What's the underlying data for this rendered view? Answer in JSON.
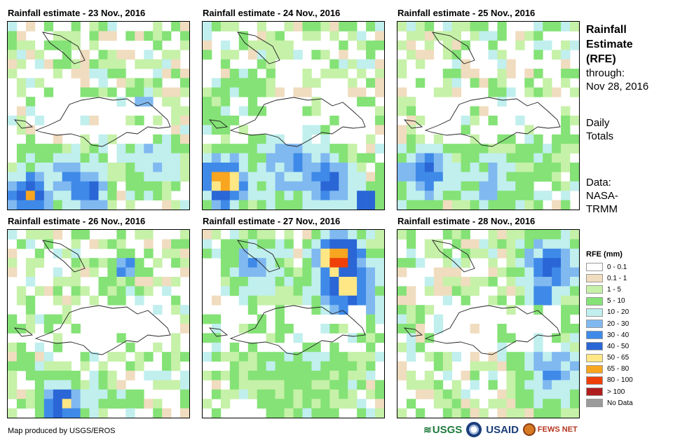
{
  "panels": [
    {
      "title": "Rainfall estimate - 23 Nov., 2016"
    },
    {
      "title": "Rainfall estimate - 24 Nov., 2016"
    },
    {
      "title": "Rainfall estimate - 25 Nov., 2016"
    },
    {
      "title": "Rainfall estimate - 26 Nov., 2016"
    },
    {
      "title": "Rainfall estimate - 27 Nov., 2016"
    },
    {
      "title": "Rainfall estimate - 28 Nov., 2016"
    }
  ],
  "side": {
    "heading1": "Rainfall",
    "heading2": "Estimate",
    "heading3": "(RFE)",
    "through1": "through:",
    "through2": "Nov 28, 2016",
    "daily1": "Daily",
    "daily2": "Totals",
    "data1": "Data:",
    "data2": "NASA-",
    "data3": "TRMM"
  },
  "legend": {
    "title": "RFE (mm)",
    "classes": [
      {
        "label": "0 - 0.1",
        "color": "#ffffff"
      },
      {
        "label": "0.1 - 1",
        "color": "#f0dcbf"
      },
      {
        "label": "1 - 5",
        "color": "#c6f1a8"
      },
      {
        "label": "5 - 10",
        "color": "#84e276"
      },
      {
        "label": "10 - 20",
        "color": "#c0efee"
      },
      {
        "label": "20 - 30",
        "color": "#80b9f0"
      },
      {
        "label": "30 - 40",
        "color": "#3f8ae8"
      },
      {
        "label": "40 - 50",
        "color": "#2a66d6"
      },
      {
        "label": "50 - 65",
        "color": "#ffe785"
      },
      {
        "label": "65 - 80",
        "color": "#f8a520"
      },
      {
        "label": "80 - 100",
        "color": "#ee4008"
      },
      {
        "label": "> 100",
        "color": "#b01d1d"
      },
      {
        "label": "No Data",
        "color": "#9b9b9b"
      }
    ]
  },
  "credit": "Map produced by USGS/EROS",
  "logos": {
    "usgs": "USGS",
    "usaid": "USAID",
    "fews": "FEWS NET"
  }
}
